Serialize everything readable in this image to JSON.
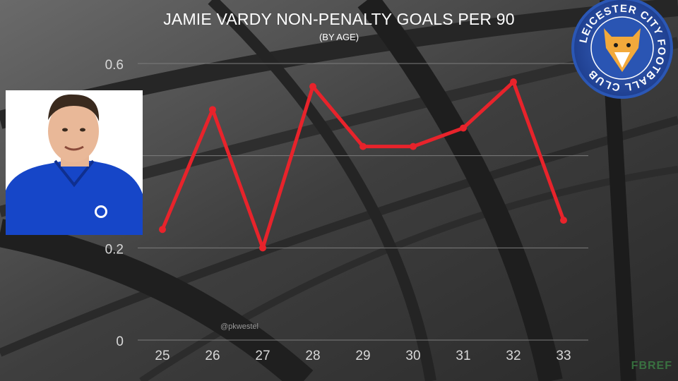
{
  "chart_data": {
    "type": "line",
    "title": "JAMIE VARDY NON-PENALTY GOALS PER 90",
    "subtitle": "(BY AGE)",
    "xlabel": "",
    "ylabel": "",
    "x": [
      25,
      26,
      27,
      28,
      29,
      30,
      31,
      32,
      33
    ],
    "series": [
      {
        "values": [
          0.24,
          0.5,
          0.2,
          0.55,
          0.42,
          0.42,
          0.46,
          0.56,
          0.26
        ]
      }
    ],
    "ylim": [
      0,
      0.6
    ],
    "yticks": [
      "0",
      "0.2",
      "0.4",
      "0.6"
    ],
    "xticks": [
      "25",
      "26",
      "27",
      "28",
      "29",
      "30",
      "31",
      "32",
      "33"
    ],
    "grid": true,
    "legend": "none",
    "line_color": "#e8232b"
  },
  "watermark": "@pkwestel",
  "source_logo": "FBREF",
  "badge": {
    "ring_text": "LEICESTER CITY FOOTBALL CLUB",
    "icon": "fox-crest-icon"
  },
  "player_photo": {
    "icon": "player-portrait-icon"
  },
  "colors": {
    "background": "#3a3a3a",
    "grid": "#7c7c7c",
    "axis_text": "#d8d8d8",
    "line": "#e8232b"
  }
}
